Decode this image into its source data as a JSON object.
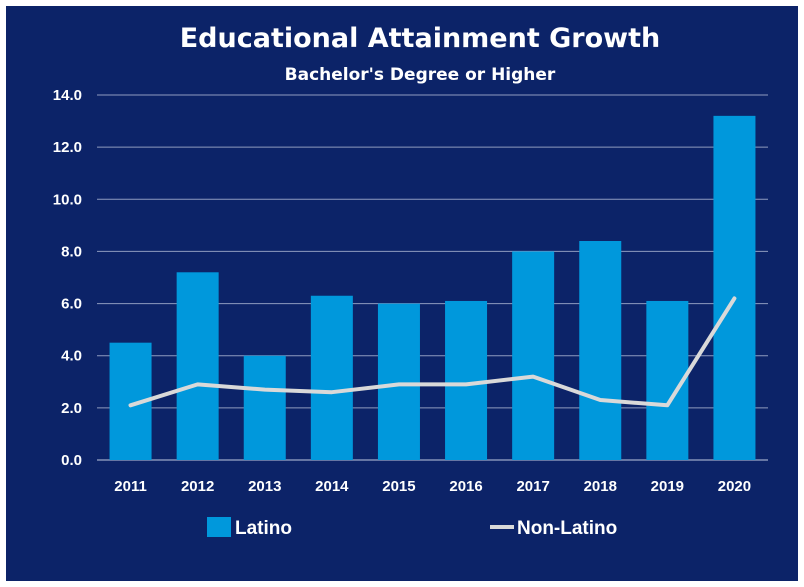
{
  "chart_data": {
    "type": "bar",
    "title": "Educational Attainment Growth",
    "subtitle": "Bachelor's Degree or Higher",
    "categories": [
      "2011",
      "2012",
      "2013",
      "2014",
      "2015",
      "2016",
      "2017",
      "2018",
      "2019",
      "2020"
    ],
    "series": [
      {
        "name": "Latino",
        "type": "bar",
        "color": "#0098dc",
        "values": [
          4.5,
          7.2,
          4.0,
          6.3,
          6.0,
          6.1,
          8.0,
          8.4,
          6.1,
          13.2
        ]
      },
      {
        "name": "Non-Latino",
        "type": "line",
        "color": "#d9d9d9",
        "values": [
          2.1,
          2.9,
          2.7,
          2.6,
          2.9,
          2.9,
          3.2,
          2.3,
          2.1,
          6.2
        ]
      }
    ],
    "ylim": [
      0,
      14
    ],
    "yticks": [
      "0.0",
      "2.0",
      "4.0",
      "6.0",
      "8.0",
      "10.0",
      "12.0",
      "14.0"
    ],
    "grid": true,
    "legend_position": "bottom-left",
    "background_color": "#0c2368",
    "text_color": "#ffffff"
  }
}
